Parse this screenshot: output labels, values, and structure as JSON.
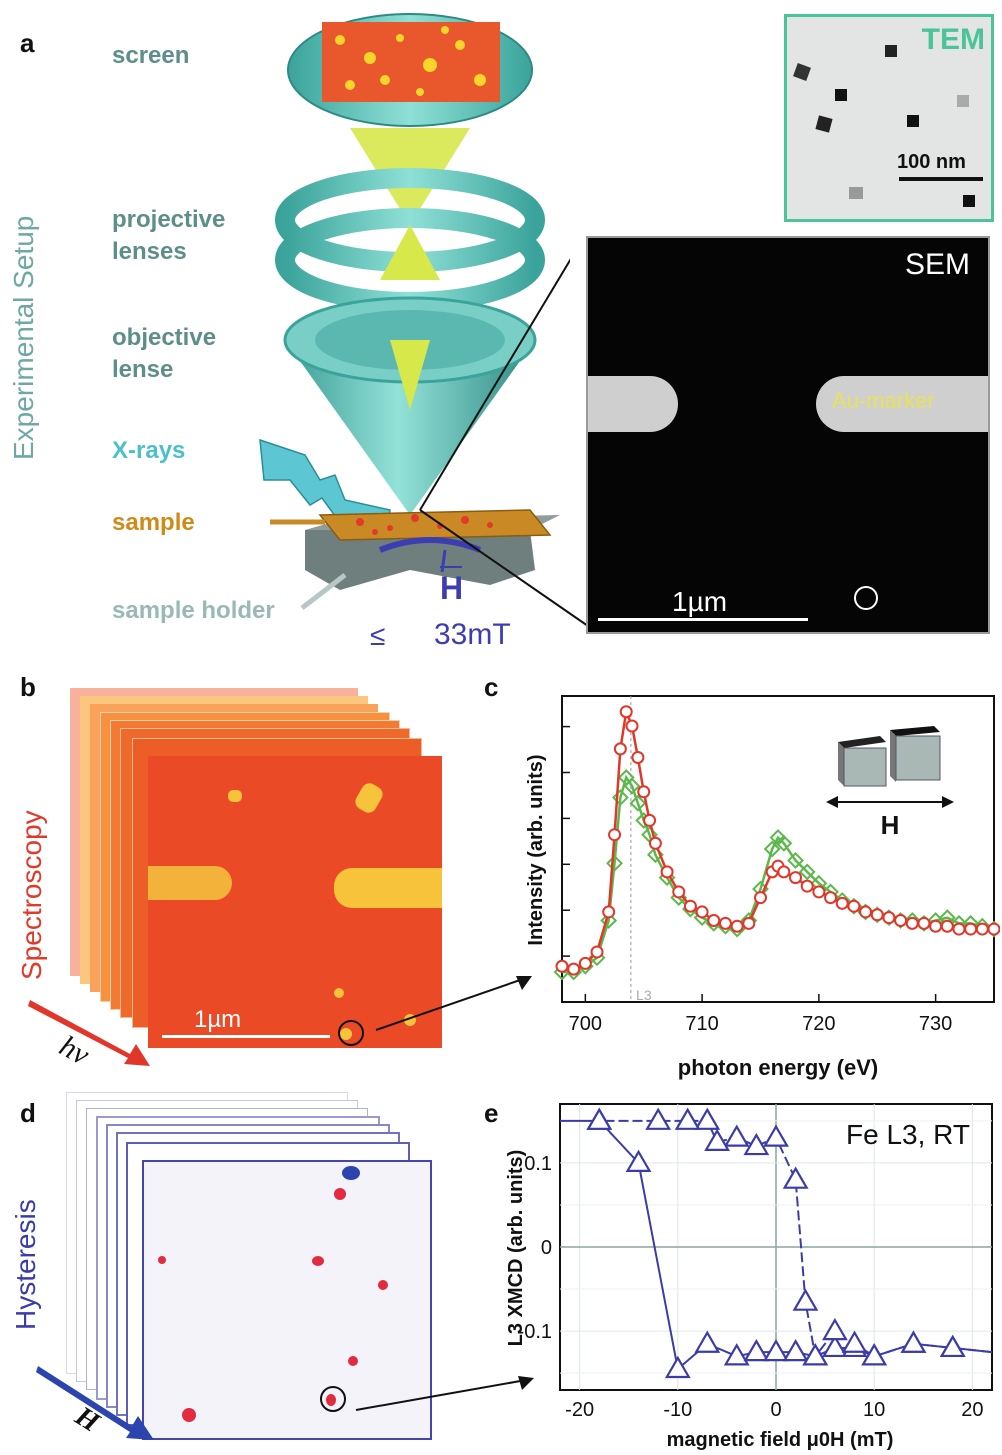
{
  "panels": {
    "a": "a",
    "b": "b",
    "c": "c",
    "d": "d",
    "e": "e"
  },
  "side_labels": {
    "setup": "Experimental Setup",
    "spectroscopy": "Spectroscopy",
    "hysteresis": "Hysteresis"
  },
  "setup": {
    "screen": "screen",
    "projective": [
      "projective",
      "lenses"
    ],
    "objective": [
      "objective",
      "lense"
    ],
    "xrays": "X-rays",
    "sample": "sample",
    "holder": "sample holder",
    "field": "H",
    "field_limit": "≤",
    "field_value": "33mT"
  },
  "tem": {
    "title": "TEM",
    "scale": "100 nm"
  },
  "sem": {
    "title": "SEM",
    "marker": "Au-marker",
    "scale": "1µm"
  },
  "spectro": {
    "scale": "1µm",
    "energy_symbol": "hν"
  },
  "hyst": {
    "field_symbol": "H"
  },
  "colors": {
    "teal": "#5fc0b8",
    "red": "#e2362b",
    "green": "#5bb84a",
    "blue": "#3c3ca8",
    "orange": "#f0622a",
    "gold": "#d08a18"
  },
  "chart_data": [
    {
      "type": "line",
      "panel": "c",
      "xlabel": "photon energy  (eV)",
      "ylabel": "Intensity (arb. units)",
      "xlim": [
        698,
        735
      ],
      "ylim": [
        0,
        1
      ],
      "xticks": [
        700,
        710,
        720,
        730
      ],
      "annotation": "L3",
      "inset_label": "H",
      "series": [
        {
          "color": "#e2362b",
          "marker": "circle",
          "x": [
            698,
            699,
            700,
            701,
            702,
            702.5,
            703,
            703.5,
            704,
            704.5,
            705,
            705.5,
            706,
            707,
            708,
            709,
            710,
            711,
            712,
            713,
            714,
            715,
            716,
            716.5,
            717,
            718,
            719,
            720,
            721,
            722,
            723,
            724,
            725,
            726,
            727,
            728,
            729,
            730,
            731,
            732,
            733,
            734,
            735
          ],
          "y": [
            0.09,
            0.08,
            0.1,
            0.14,
            0.28,
            0.55,
            0.85,
            0.98,
            0.93,
            0.82,
            0.7,
            0.6,
            0.52,
            0.42,
            0.35,
            0.3,
            0.28,
            0.25,
            0.24,
            0.23,
            0.24,
            0.33,
            0.42,
            0.44,
            0.42,
            0.4,
            0.37,
            0.35,
            0.33,
            0.31,
            0.3,
            0.28,
            0.27,
            0.26,
            0.25,
            0.24,
            0.24,
            0.23,
            0.23,
            0.22,
            0.22,
            0.22,
            0.22
          ]
        },
        {
          "color": "#5bb84a",
          "marker": "diamond",
          "x": [
            698,
            699,
            700,
            701,
            702,
            702.5,
            703,
            703.5,
            704,
            704.5,
            705,
            705.5,
            706,
            707,
            708,
            709,
            710,
            711,
            712,
            713,
            714,
            715,
            716,
            716.5,
            717,
            718,
            719,
            720,
            721,
            722,
            723,
            724,
            725,
            726,
            727,
            728,
            729,
            730,
            731,
            732,
            733,
            734,
            735
          ],
          "y": [
            0.07,
            0.07,
            0.09,
            0.12,
            0.25,
            0.45,
            0.68,
            0.75,
            0.72,
            0.66,
            0.6,
            0.55,
            0.48,
            0.4,
            0.33,
            0.29,
            0.26,
            0.24,
            0.23,
            0.22,
            0.25,
            0.36,
            0.5,
            0.54,
            0.52,
            0.46,
            0.42,
            0.38,
            0.35,
            0.32,
            0.3,
            0.28,
            0.27,
            0.26,
            0.25,
            0.25,
            0.24,
            0.25,
            0.26,
            0.24,
            0.24,
            0.23,
            0.22
          ]
        }
      ]
    },
    {
      "type": "line",
      "panel": "e",
      "xlabel": "magnetic field μ0H (mT)",
      "ylabel": "L3 XMCD (arb. units)",
      "xlim": [
        -22,
        22
      ],
      "ylim": [
        -0.17,
        0.17
      ],
      "xticks": [
        -20,
        -10,
        0,
        10,
        20
      ],
      "yticks": [
        -0.1,
        0,
        0.1
      ],
      "ytick_labels": [
        "-0.1",
        "0",
        "0.1"
      ],
      "grid": true,
      "annotation": "Fe L3, RT",
      "series": [
        {
          "color": "#3c3ca8",
          "marker": "triangle",
          "x": [
            -22,
            -18,
            -14,
            -10,
            -7,
            -4,
            -2,
            0,
            2,
            4,
            6,
            8,
            10,
            14,
            18,
            22
          ],
          "y": [
            0.15,
            0.15,
            0.1,
            -0.145,
            -0.115,
            -0.13,
            -0.125,
            -0.125,
            -0.125,
            -0.13,
            -0.12,
            -0.12,
            -0.13,
            -0.115,
            -0.12,
            -0.125
          ]
        },
        {
          "color": "#3c3ca8",
          "marker": "triangle",
          "x": [
            22,
            18,
            14,
            10,
            8,
            6,
            4,
            3,
            2,
            0,
            -2,
            -4,
            -6,
            -7,
            -9,
            -12,
            -18
          ],
          "y": [
            -0.125,
            -0.12,
            -0.115,
            -0.13,
            -0.115,
            -0.1,
            -0.13,
            -0.065,
            0.08,
            0.13,
            0.12,
            0.13,
            0.125,
            0.15,
            0.15,
            0.15,
            0.15
          ]
        }
      ]
    }
  ]
}
